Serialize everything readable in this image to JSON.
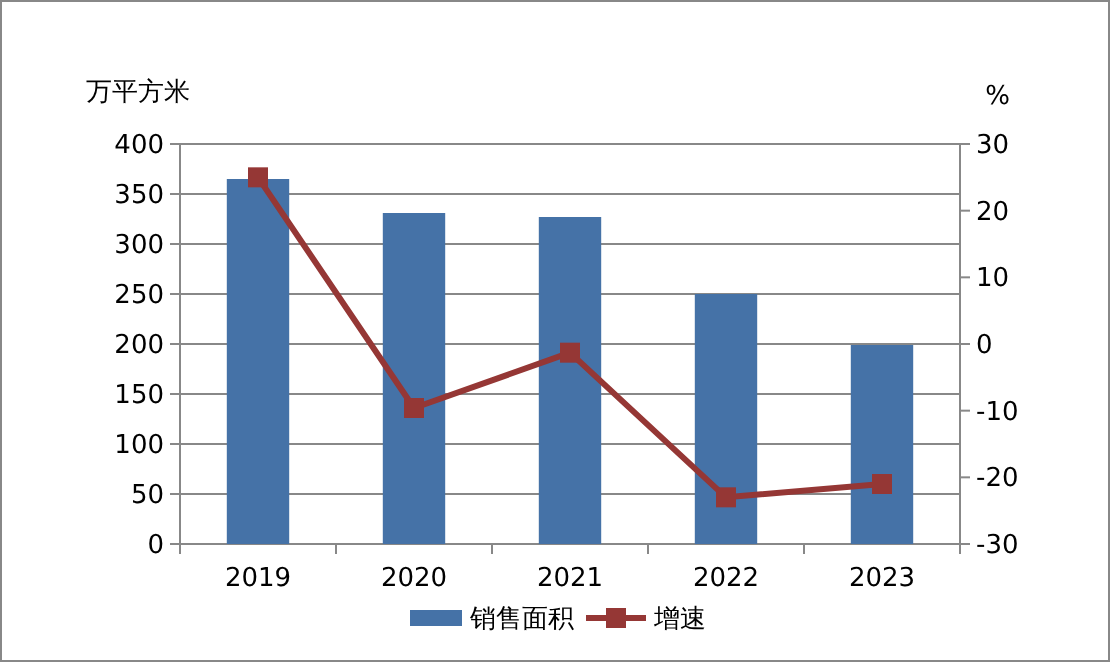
{
  "chart_data": {
    "type": "bar",
    "categories": [
      "2019",
      "2020",
      "2021",
      "2022",
      "2023"
    ],
    "series": [
      {
        "name": "销售面积",
        "color": "#4572a7",
        "values": [
          365,
          331,
          327,
          250,
          199
        ]
      },
      {
        "name": "增速",
        "type": "line",
        "axis": "y2",
        "color": "#953735",
        "marker": "square",
        "values": [
          25,
          -9.6,
          -1.3,
          -23,
          -21
        ]
      }
    ],
    "ylabel": "万平方米",
    "y2label": "%",
    "ylim": [
      0,
      400
    ],
    "yticks": [
      0,
      50,
      100,
      150,
      200,
      250,
      300,
      350,
      400
    ],
    "y2lim": [
      -30,
      30
    ],
    "y2ticks": [
      -30,
      -20,
      -10,
      0,
      10,
      20,
      30
    ],
    "grid": "y",
    "legend": "bottom"
  }
}
